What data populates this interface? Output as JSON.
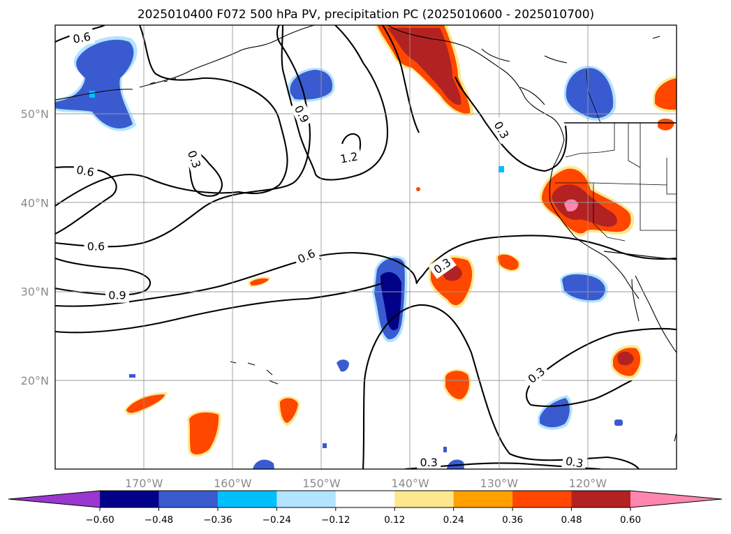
{
  "title": "2025010400 F072 500 hPa PV, precipitation PC (2025010600 - 2025010700)",
  "map": {
    "lon_range": [
      -180,
      -110
    ],
    "lat_range": [
      10,
      60
    ],
    "lon_ticks": [
      {
        "lon": -170,
        "label": "170°W"
      },
      {
        "lon": -160,
        "label": "160°W"
      },
      {
        "lon": -150,
        "label": "150°W"
      },
      {
        "lon": -140,
        "label": "140°W"
      },
      {
        "lon": -130,
        "label": "130°W"
      },
      {
        "lon": -120,
        "label": "120°W"
      }
    ],
    "lat_ticks": [
      {
        "lat": 50,
        "label": "50°N"
      },
      {
        "lat": 40,
        "label": "40°N"
      },
      {
        "lat": 30,
        "label": "30°N"
      },
      {
        "lat": 20,
        "label": "20°N"
      }
    ],
    "grid": true
  },
  "colorbar": {
    "colors": [
      "#9a37cf",
      "#020288",
      "#3a5bd0",
      "#00bfff",
      "#b2e3ff",
      "#ffffff",
      "#fde88c",
      "#ffa000",
      "#ff4700",
      "#b22222",
      "#ff86b0"
    ],
    "ticks": [
      "−0.60",
      "−0.48",
      "−0.36",
      "−0.24",
      "−0.12",
      "0.12",
      "0.24",
      "0.36",
      "0.48",
      "0.60"
    ],
    "extend": "both"
  },
  "contour_labels": [
    {
      "text": "0.6",
      "lon": -177,
      "lat": 58.6,
      "rot": -10
    },
    {
      "text": "0.6",
      "lon": -176.6,
      "lat": 43.6,
      "rot": 10
    },
    {
      "text": "0.6",
      "lon": -175.4,
      "lat": 35.1,
      "rot": 0
    },
    {
      "text": "0.9",
      "lon": -173,
      "lat": 29.6,
      "rot": 0
    },
    {
      "text": "0.3",
      "lon": -164.3,
      "lat": 44.9,
      "rot": 70
    },
    {
      "text": "0.9",
      "lon": -152.2,
      "lat": 50,
      "rot": 62
    },
    {
      "text": "1.2",
      "lon": -146.9,
      "lat": 45.1,
      "rot": -10
    },
    {
      "text": "0.6",
      "lon": -151.7,
      "lat": 34,
      "rot": -25
    },
    {
      "text": "0.3",
      "lon": -129.7,
      "lat": 48.2,
      "rot": 60
    },
    {
      "text": "0.3",
      "lon": -136.4,
      "lat": 32.9,
      "rot": -35
    },
    {
      "text": "0.3",
      "lon": -125.8,
      "lat": 20.6,
      "rot": -38
    },
    {
      "text": "0.3",
      "lon": -137.9,
      "lat": 10.8,
      "rot": 0
    },
    {
      "text": "0.3",
      "lon": -121.5,
      "lat": 10.8,
      "rot": 10
    }
  ]
}
